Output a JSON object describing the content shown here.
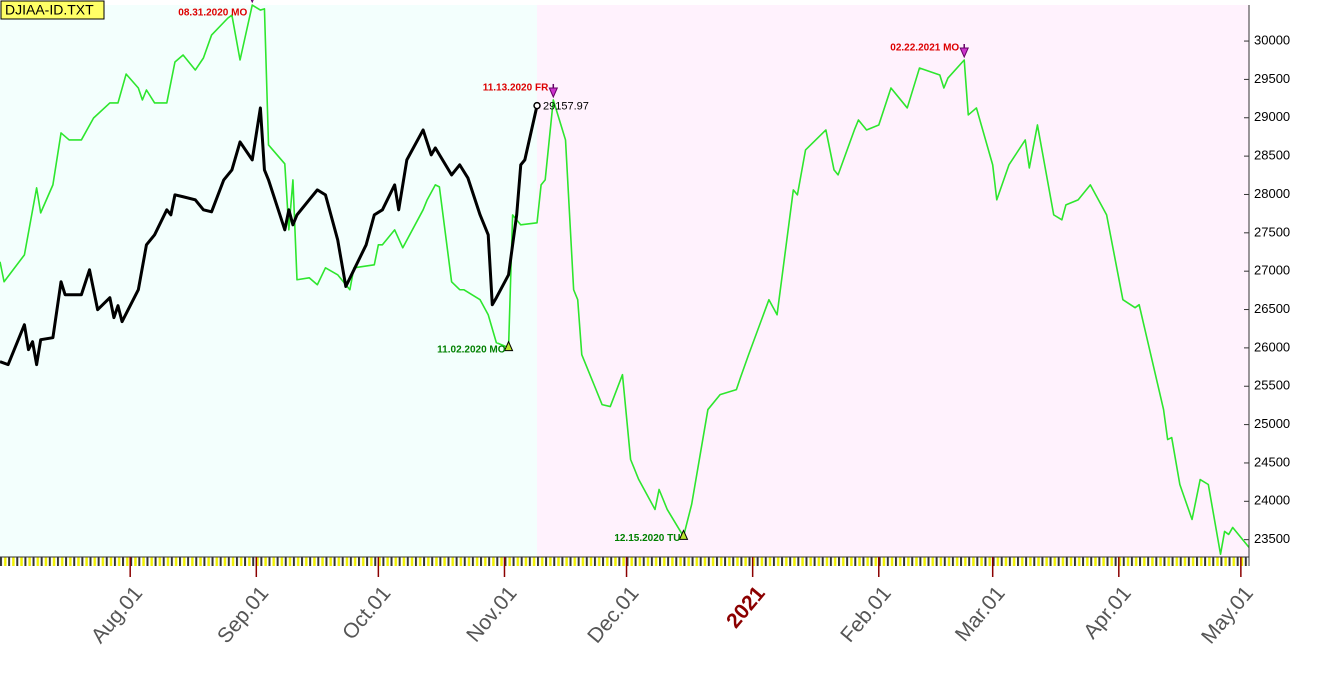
{
  "chart_data": {
    "type": "line",
    "title": "DJIAA-ID.TXT",
    "xlim": [
      "2020-06-30",
      "2021-05-03"
    ],
    "xticks": [
      {
        "value": "2020-08-01",
        "label": "Aug.01"
      },
      {
        "value": "2020-09-01",
        "label": "Sep.01"
      },
      {
        "value": "2020-10-01",
        "label": "Oct.01"
      },
      {
        "value": "2020-11-01",
        "label": "Nov.01"
      },
      {
        "value": "2020-12-01",
        "label": "Dec.01"
      },
      {
        "value": "2021-01-01",
        "label": "2021",
        "color": "#8b0000"
      },
      {
        "value": "2021-02-01",
        "label": "Feb.01"
      },
      {
        "value": "2021-03-01",
        "label": "Mar.01"
      },
      {
        "value": "2021-04-01",
        "label": "Apr.01"
      },
      {
        "value": "2021-05-01",
        "label": "May.01"
      }
    ],
    "xtick_color": "#555555",
    "ylim": [
      23300,
      30470
    ],
    "yticks": [
      23500,
      24000,
      24500,
      25000,
      25500,
      26000,
      26500,
      27000,
      27500,
      28000,
      28500,
      29000,
      29500,
      30000
    ],
    "background_colors": [
      "#f3fffd",
      "#fff2fd"
    ],
    "series": [
      {
        "color": "#2ee62e",
        "x": [
          "2020-06-30",
          "2020-07-01",
          "2020-07-06",
          "2020-07-09",
          "2020-07-10",
          "2020-07-13",
          "2020-07-15",
          "2020-07-17",
          "2020-07-20",
          "2020-07-23",
          "2020-07-27",
          "2020-07-29",
          "2020-07-31",
          "2020-08-03",
          "2020-08-04",
          "2020-08-05",
          "2020-08-07",
          "2020-08-10",
          "2020-08-12",
          "2020-08-14",
          "2020-08-17",
          "2020-08-19",
          "2020-08-21",
          "2020-08-25",
          "2020-08-26",
          "2020-08-28",
          "2020-08-31",
          "2020-09-02",
          "2020-09-03",
          "2020-09-04",
          "2020-09-08",
          "2020-09-09",
          "2020-09-10",
          "2020-09-11",
          "2020-09-14",
          "2020-09-16",
          "2020-09-18",
          "2020-09-21",
          "2020-09-24",
          "2020-09-25",
          "2020-09-30",
          "2020-10-01",
          "2020-10-02",
          "2020-10-05",
          "2020-10-07",
          "2020-10-12",
          "2020-10-13",
          "2020-10-15",
          "2020-10-16",
          "2020-10-19",
          "2020-10-21",
          "2020-10-22",
          "2020-10-26",
          "2020-10-28",
          "2020-10-30",
          "2020-11-02",
          "2020-11-03",
          "2020-11-05",
          "2020-11-09",
          "2020-11-10",
          "2020-11-11",
          "2020-11-13",
          "2020-11-16",
          "2020-11-18",
          "2020-11-19",
          "2020-11-20",
          "2020-11-23",
          "2020-11-25",
          "2020-11-27",
          "2020-11-30",
          "2020-12-02",
          "2020-12-04",
          "2020-12-08",
          "2020-12-09",
          "2020-12-11",
          "2020-12-15",
          "2020-12-17",
          "2020-12-21",
          "2020-12-24",
          "2020-12-28",
          "2020-12-29",
          "2020-12-31",
          "2021-01-05",
          "2021-01-07",
          "2021-01-11",
          "2021-01-12",
          "2021-01-14",
          "2021-01-19",
          "2021-01-21",
          "2021-01-22",
          "2021-01-26",
          "2021-01-27",
          "2021-01-29",
          "2021-02-01",
          "2021-02-04",
          "2021-02-08",
          "2021-02-11",
          "2021-02-16",
          "2021-02-17",
          "2021-02-18",
          "2021-02-22",
          "2021-02-23",
          "2021-02-25",
          "2021-03-01",
          "2021-03-02",
          "2021-03-05",
          "2021-03-09",
          "2021-03-10",
          "2021-03-12",
          "2021-03-16",
          "2021-03-18",
          "2021-03-19",
          "2021-03-22",
          "2021-03-25",
          "2021-03-29",
          "2021-04-02",
          "2021-04-05",
          "2021-04-06",
          "2021-04-12",
          "2021-04-13",
          "2021-04-14",
          "2021-04-16",
          "2021-04-19",
          "2021-04-21",
          "2021-04-23",
          "2021-04-26",
          "2021-04-27",
          "2021-04-28",
          "2021-04-29",
          "2021-05-03"
        ],
        "values": [
          27123,
          26862,
          27213,
          28086,
          27760,
          28125,
          28802,
          28711,
          28711,
          28997,
          29193,
          29193,
          29570,
          29388,
          29232,
          29362,
          29193,
          29193,
          29727,
          29818,
          29622,
          29779,
          30078,
          30299,
          30338,
          29753,
          30469,
          30404,
          30420,
          28646,
          28400,
          27539,
          28190,
          26888,
          26914,
          26823,
          27044,
          26953,
          26758,
          27044,
          27083,
          27344,
          27344,
          27539,
          27305,
          27800,
          27930,
          28125,
          28099,
          26862,
          26758,
          26758,
          26628,
          26432,
          26068,
          26003,
          27734,
          27604,
          27630,
          28125,
          28190,
          29232,
          28711,
          26758,
          26628,
          25911,
          25521,
          25260,
          25235,
          25651,
          24545,
          24284,
          23894,
          24154,
          23894,
          23542,
          23959,
          25196,
          25391,
          25456,
          25612,
          25911,
          26628,
          26432,
          28060,
          27995,
          28581,
          28841,
          28320,
          28255,
          28841,
          28971,
          28841,
          28906,
          29388,
          29128,
          29648,
          29557,
          29388,
          29518,
          29753,
          29037,
          29128,
          28386,
          27930,
          28386,
          28711,
          28346,
          28906,
          27734,
          27669,
          27865,
          27930,
          28125,
          27734,
          26628,
          26524,
          26563,
          25196,
          24805,
          24831,
          24219,
          23763,
          24284,
          24219,
          23310,
          23607,
          23568,
          23659,
          23399
        ]
      },
      {
        "color": "#000000",
        "x": [
          "2020-06-30",
          "2020-07-02",
          "2020-07-06",
          "2020-07-07",
          "2020-07-08",
          "2020-07-09",
          "2020-07-10",
          "2020-07-13",
          "2020-07-15",
          "2020-07-16",
          "2020-07-20",
          "2020-07-22",
          "2020-07-24",
          "2020-07-27",
          "2020-07-28",
          "2020-07-29",
          "2020-07-30",
          "2020-08-03",
          "2020-08-05",
          "2020-08-07",
          "2020-08-10",
          "2020-08-11",
          "2020-08-12",
          "2020-08-14",
          "2020-08-17",
          "2020-08-19",
          "2020-08-21",
          "2020-08-24",
          "2020-08-26",
          "2020-08-28",
          "2020-08-31",
          "2020-09-02",
          "2020-09-03",
          "2020-09-04",
          "2020-09-08",
          "2020-09-09",
          "2020-09-10",
          "2020-09-11",
          "2020-09-14",
          "2020-09-16",
          "2020-09-18",
          "2020-09-21",
          "2020-09-23",
          "2020-09-25",
          "2020-09-28",
          "2020-09-30",
          "2020-10-02",
          "2020-10-05",
          "2020-10-06",
          "2020-10-08",
          "2020-10-12",
          "2020-10-14",
          "2020-10-15",
          "2020-10-19",
          "2020-10-21",
          "2020-10-23",
          "2020-10-26",
          "2020-10-28",
          "2020-10-29",
          "2020-10-30",
          "2020-11-02",
          "2020-11-03",
          "2020-11-04",
          "2020-11-05",
          "2020-11-06",
          "2020-11-09"
        ],
        "values": [
          25821,
          25782,
          26302,
          25977,
          26081,
          25782,
          26107,
          26133,
          26862,
          26693,
          26693,
          27018,
          26498,
          26654,
          26394,
          26550,
          26342,
          26758,
          27344,
          27474,
          27800,
          27734,
          27995,
          27970,
          27930,
          27800,
          27774,
          28190,
          28320,
          28685,
          28451,
          29128,
          28320,
          28190,
          27539,
          27800,
          27604,
          27734,
          27930,
          28060,
          27995,
          27409,
          26800,
          27018,
          27344,
          27734,
          27800,
          28125,
          27800,
          28451,
          28841,
          28516,
          28607,
          28255,
          28386,
          28216,
          27734,
          27474,
          26563,
          26654,
          26953,
          27344,
          27734,
          28386,
          28451,
          29157.97
        ]
      }
    ],
    "annotations": [
      {
        "text": "08.31.2020 MO",
        "x": "2020-08-31",
        "position": "above",
        "color": "#dd0000"
      },
      {
        "text": "11.13.2020 FR",
        "x": "2020-11-13",
        "position": "above",
        "color": "#dd0000"
      },
      {
        "text": "11.02.2020 MO",
        "x": "2020-11-02",
        "position": "below",
        "color": "#008000"
      },
      {
        "text": "12.15.2020 TU",
        "x": "2020-12-15",
        "position": "below",
        "color": "#008000"
      },
      {
        "text": "02.22.2021 MO",
        "x": "2021-02-22",
        "position": "above",
        "color": "#dd0000"
      }
    ]
  }
}
